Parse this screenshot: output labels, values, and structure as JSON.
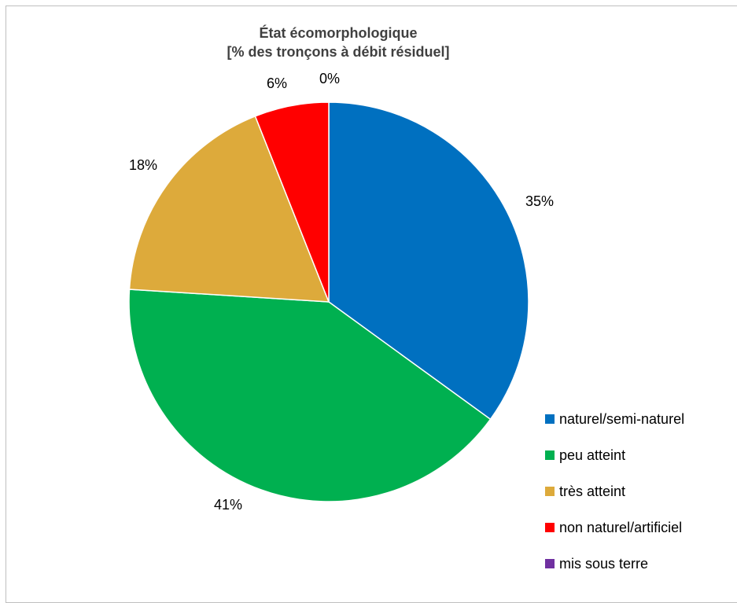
{
  "chart_data": {
    "type": "pie",
    "title": [
      "État écomorphologique",
      "[% des tronçons à débit résiduel]"
    ],
    "categories": [
      "naturel/semi-naturel",
      "peu atteint",
      "très atteint",
      "non naturel/artificiel",
      "mis sous terre"
    ],
    "values": [
      35,
      41,
      18,
      6,
      0
    ],
    "labels": [
      "35%",
      "41%",
      "18%",
      "6%",
      "0%"
    ],
    "colors": [
      "#0070c0",
      "#00b050",
      "#ddaa3b",
      "#ff0000",
      "#7030a0"
    ],
    "legend_position": "bottom-right"
  }
}
